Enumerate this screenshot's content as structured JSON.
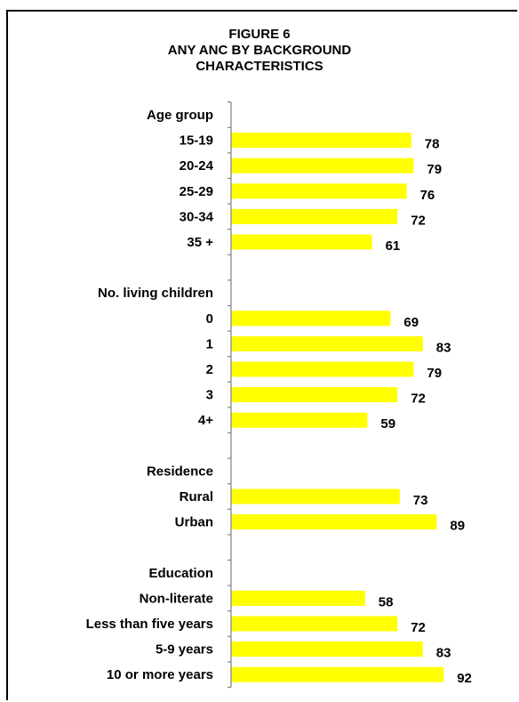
{
  "figure": {
    "title_lines": [
      "FIGURE 6",
      "ANY  ANC BY  BACKGROUND",
      "CHARACTERISTICS"
    ]
  },
  "colors": {
    "bar": "#ffff00",
    "axis": "#808080",
    "text": "#000000"
  },
  "chart_data": {
    "type": "bar",
    "orientation": "horizontal",
    "title": "FIGURE 6 ANY  ANC BY  BACKGROUND CHARACTERISTICS",
    "xlabel": "",
    "ylabel": "",
    "xlim": [
      0,
      100
    ],
    "grid": false,
    "legend": "none",
    "data_labels": true,
    "groups": [
      {
        "name": "Age group",
        "categories": [
          "15-19",
          "20-24",
          "25-29",
          "30-34",
          "35 +"
        ],
        "values": [
          78,
          79,
          76,
          72,
          61
        ]
      },
      {
        "name": "No. living children",
        "categories": [
          "0",
          "1",
          "2",
          "3",
          "4+"
        ],
        "values": [
          69,
          83,
          79,
          72,
          59
        ]
      },
      {
        "name": "Residence",
        "categories": [
          "Rural",
          "Urban"
        ],
        "values": [
          73,
          89
        ]
      },
      {
        "name": "Education",
        "categories": [
          "Non-literate",
          "Less than five years",
          "5-9 years",
          "10 or more years"
        ],
        "values": [
          58,
          72,
          83,
          92
        ]
      }
    ]
  }
}
